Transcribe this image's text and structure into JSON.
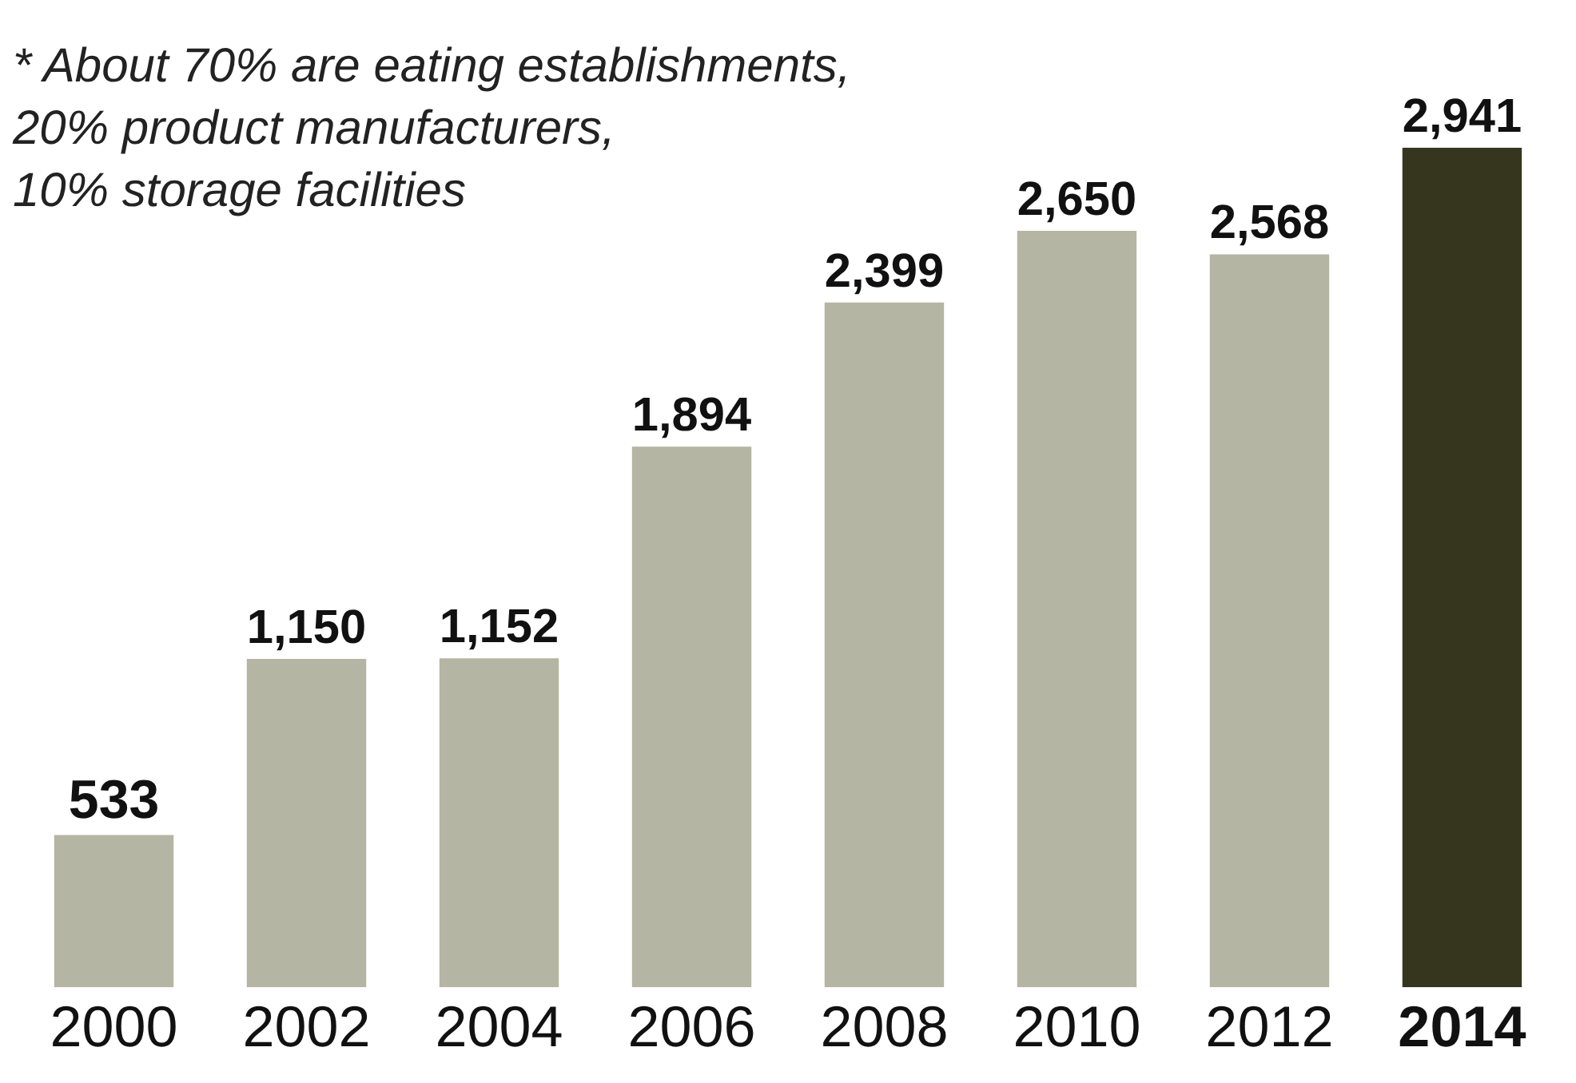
{
  "chart_data": {
    "type": "bar",
    "categories": [
      "2000",
      "2002",
      "2004",
      "2006",
      "2008",
      "2010",
      "2012",
      "2014"
    ],
    "values": [
      533,
      1150,
      1152,
      1894,
      2399,
      2650,
      2568,
      2941
    ],
    "colors": [
      "#b5b5a3",
      "#b5b5a3",
      "#b5b5a3",
      "#b5b5a3",
      "#b5b5a3",
      "#b5b5a3",
      "#b5b5a3",
      "#36361f"
    ],
    "value_labels": [
      "533",
      "1,150",
      "1,152",
      "1,894",
      "2,399",
      "2,650",
      "2,568",
      "2,941"
    ],
    "legend": false,
    "tick_labels": "x",
    "annotations": [
      "* About 70% are eating establishments,\n20% product manufacturers,\n10% storage facilities"
    ]
  }
}
